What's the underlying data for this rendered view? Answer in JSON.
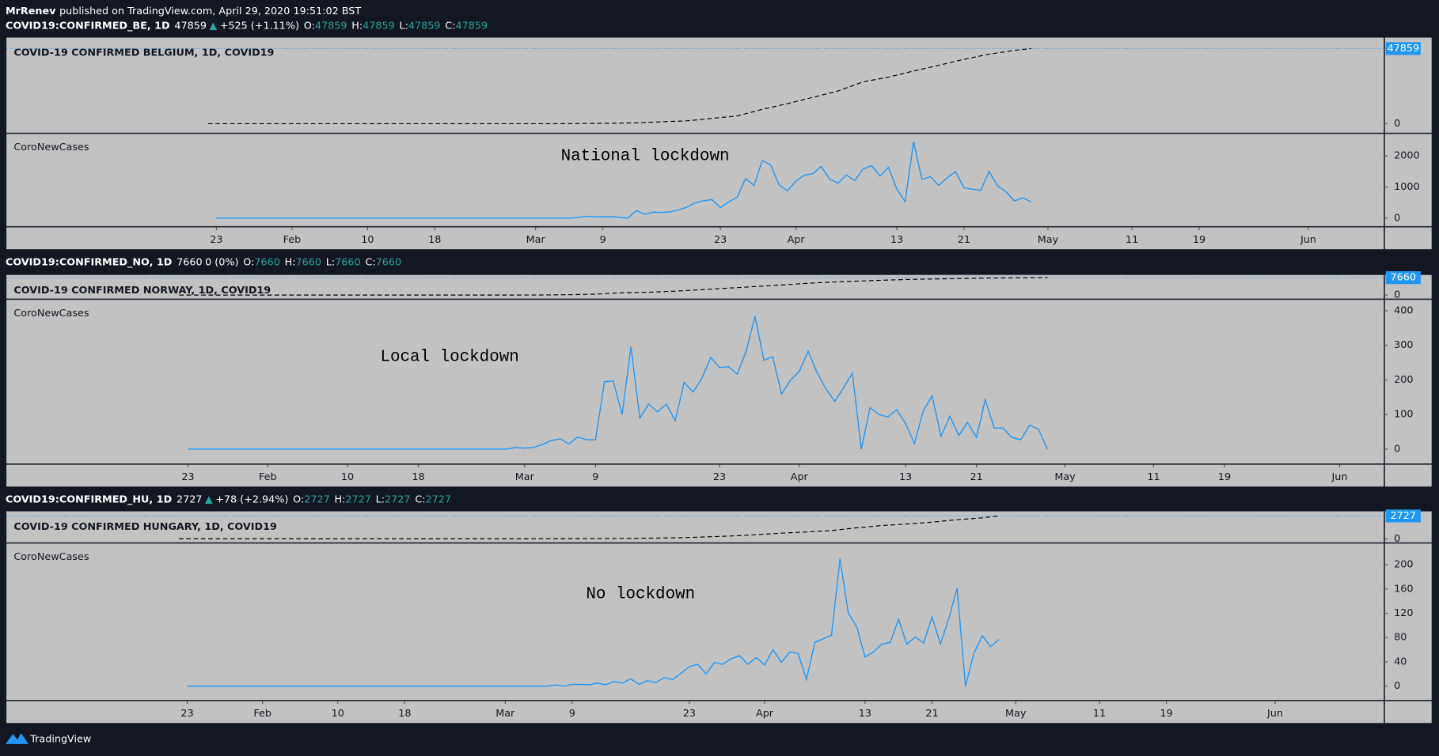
{
  "header": {
    "author": "MrRenev",
    "published": "published on TradingView.com, April 29, 2020 19:51:02 BST"
  },
  "footer": {
    "brand": "TradingView"
  },
  "chart_data": [
    {
      "type": "line",
      "symbol": "COVID19:CONFIRMED_BE, 1D",
      "last": 47859,
      "direction": "▲",
      "change": "+525 (+1.11%)",
      "ohlc": [
        {
          "label": "O:",
          "value": 47859
        },
        {
          "label": "H:",
          "value": 47859
        },
        {
          "label": "L:",
          "value": 47859
        },
        {
          "label": "C:",
          "value": 47859
        }
      ],
      "title": "COVID-19 CONFIRMED BELGIUM, 1D, COVID19",
      "cumulative_x": [
        22,
        34,
        35,
        60,
        61,
        64,
        67,
        70,
        73,
        76,
        79,
        82,
        85,
        88,
        91,
        94,
        97,
        100,
        103,
        106,
        109,
        112,
        115,
        118,
        120
      ],
      "cumulative_values": [
        0,
        0,
        1,
        1,
        2,
        13,
        169,
        267,
        559,
        1243,
        1795,
        3401,
        4937,
        9134,
        12775,
        16770,
        20814,
        26667,
        29647,
        33573,
        37183,
        40956,
        44293,
        46687,
        47859
      ],
      "cumulative_ylim": [
        -5836,
        54860
      ],
      "cumulative_yticks": [
        0,
        47859
      ],
      "indicator": "CoroNewCases",
      "annotation": "National lockdown",
      "color": "#2196f3",
      "x": [
        23,
        65,
        66,
        67,
        68,
        69,
        70,
        71,
        72,
        73,
        74,
        75,
        76,
        77,
        78,
        79,
        80,
        81,
        82,
        83,
        84,
        85,
        86,
        87,
        88,
        89,
        90,
        91,
        92,
        93,
        94,
        95,
        96,
        97,
        98,
        99,
        100,
        101,
        102,
        103,
        104,
        105,
        106,
        107,
        108,
        109,
        110,
        111,
        112,
        113,
        114,
        115,
        116,
        117,
        118,
        119,
        120
      ],
      "values": [
        0,
        0,
        20,
        60,
        40,
        40,
        45,
        30,
        0,
        240,
        120,
        190,
        180,
        200,
        260,
        350,
        490,
        560,
        590,
        340,
        520,
        670,
        1270,
        1050,
        1850,
        1700,
        1060,
        880,
        1190,
        1380,
        1420,
        1660,
        1260,
        1120,
        1380,
        1210,
        1580,
        1680,
        1350,
        1630,
        940,
        530,
        2450,
        1240,
        1330,
        1050,
        1290,
        1490,
        970,
        930,
        890,
        1500,
        1030,
        850,
        550,
        650,
        520
      ],
      "ylim": [
        -265,
        2706
      ],
      "yticks": [
        0,
        1000,
        2000
      ],
      "xlim": [
        -2,
        162
      ],
      "xticks": [
        {
          "value": 23,
          "label": "23"
        },
        {
          "value": 32,
          "label": "Feb"
        },
        {
          "value": 41,
          "label": "10"
        },
        {
          "value": 49,
          "label": "18"
        },
        {
          "value": 61,
          "label": "Mar"
        },
        {
          "value": 69,
          "label": "9"
        },
        {
          "value": 83,
          "label": "23"
        },
        {
          "value": 92,
          "label": "Apr"
        },
        {
          "value": 104,
          "label": "13"
        },
        {
          "value": 112,
          "label": "21"
        },
        {
          "value": 122,
          "label": "May"
        },
        {
          "value": 132,
          "label": "11"
        },
        {
          "value": 140,
          "label": "19"
        },
        {
          "value": 153,
          "label": "Jun"
        }
      ]
    },
    {
      "type": "line",
      "symbol": "COVID19:CONFIRMED_NO, 1D",
      "last": 7660,
      "change": "0 (0%)",
      "ohlc": [
        {
          "label": "O:",
          "value": 7660
        },
        {
          "label": "H:",
          "value": 7660
        },
        {
          "label": "L:",
          "value": 7660
        },
        {
          "label": "C:",
          "value": 7660
        }
      ],
      "title": "COVID-19 CONFIRMED NORWAY, 1D, COVID19",
      "cumulative_x": [
        22,
        56,
        57,
        60,
        63,
        66,
        69,
        72,
        75,
        78,
        81,
        84,
        87,
        90,
        93,
        96,
        99,
        102,
        105,
        108,
        111,
        114,
        117,
        120
      ],
      "cumulative_values": [
        0,
        0,
        1,
        19,
        56,
        147,
        400,
        996,
        1256,
        1741,
        2383,
        3084,
        3755,
        4447,
        5208,
        5760,
        6211,
        6623,
        6937,
        7156,
        7338,
        7499,
        7599,
        7660
      ],
      "cumulative_ylim": [
        -1613,
        8870
      ],
      "cumulative_yticks": [
        0,
        7660
      ],
      "indicator": "CoroNewCases",
      "annotation": "Local lockdown",
      "color": "#2196f3",
      "x": [
        23,
        59,
        60,
        61,
        62,
        63,
        64,
        65,
        66,
        67,
        68,
        69,
        70,
        71,
        72,
        73,
        74,
        75,
        76,
        77,
        78,
        79,
        80,
        81,
        82,
        83,
        84,
        85,
        86,
        87,
        88,
        89,
        90,
        91,
        92,
        93,
        94,
        95,
        96,
        97,
        98,
        99,
        100,
        101,
        102,
        103,
        104,
        105,
        106,
        107,
        108,
        109,
        110,
        111,
        112,
        113,
        114,
        115,
        116,
        117,
        118,
        119,
        120
      ],
      "values": [
        0,
        0,
        5,
        3,
        5,
        13,
        25,
        30,
        15,
        35,
        27,
        27,
        195,
        197,
        100,
        296,
        90,
        130,
        108,
        130,
        82,
        193,
        165,
        204,
        265,
        236,
        238,
        217,
        283,
        384,
        257,
        267,
        159,
        199,
        225,
        283,
        222,
        175,
        138,
        177,
        220,
        0,
        120,
        100,
        93,
        114,
        74,
        16,
        111,
        154,
        37,
        95,
        40,
        77,
        34,
        143,
        61,
        61,
        34,
        27,
        69,
        58,
        0
      ],
      "ylim": [
        -42,
        432
      ],
      "yticks": [
        0,
        100,
        200,
        300,
        400
      ],
      "xlim": [
        2.5,
        158
      ],
      "xticks": [
        {
          "value": 23,
          "label": "23"
        },
        {
          "value": 32,
          "label": "Feb"
        },
        {
          "value": 41,
          "label": "10"
        },
        {
          "value": 49,
          "label": "18"
        },
        {
          "value": 61,
          "label": "Mar"
        },
        {
          "value": 69,
          "label": "9"
        },
        {
          "value": 83,
          "label": "23"
        },
        {
          "value": 92,
          "label": "Apr"
        },
        {
          "value": 104,
          "label": "13"
        },
        {
          "value": 112,
          "label": "21"
        },
        {
          "value": 122,
          "label": "May"
        },
        {
          "value": 132,
          "label": "11"
        },
        {
          "value": 140,
          "label": "19"
        },
        {
          "value": 153,
          "label": "Jun"
        }
      ]
    },
    {
      "type": "line",
      "symbol": "COVID19:CONFIRMED_HU, 1D",
      "last": 2727,
      "direction": "▲",
      "change": "+78 (+2.94%)",
      "ohlc": [
        {
          "label": "O:",
          "value": 2727
        },
        {
          "label": "H:",
          "value": 2727
        },
        {
          "label": "L:",
          "value": 2727
        },
        {
          "label": "C:",
          "value": 2727
        }
      ],
      "title": "COVID-19 CONFIRMED HUNGARY, 1D, COVID19",
      "cumulative_x": [
        22,
        63,
        64,
        67,
        70,
        73,
        76,
        79,
        82,
        85,
        88,
        91,
        94,
        97,
        100,
        103,
        106,
        109,
        112,
        115,
        118,
        120
      ],
      "cumulative_values": [
        0,
        0,
        2,
        9,
        13,
        30,
        50,
        85,
        131,
        226,
        343,
        492,
        678,
        817,
        980,
        1310,
        1579,
        1763,
        1984,
        2284,
        2500,
        2727
      ],
      "cumulative_ylim": [
        -436,
        3272
      ],
      "cumulative_yticks": [
        0,
        2727
      ],
      "indicator": "CoroNewCases",
      "annotation": "No lockdown",
      "color": "#2196f3",
      "x": [
        23,
        66,
        67,
        68,
        69,
        70,
        71,
        72,
        73,
        74,
        75,
        76,
        77,
        78,
        79,
        80,
        81,
        82,
        83,
        84,
        85,
        86,
        87,
        88,
        89,
        90,
        91,
        92,
        93,
        94,
        95,
        96,
        97,
        98,
        99,
        100,
        101,
        102,
        103,
        104,
        105,
        106,
        107,
        108,
        109,
        110,
        111,
        112,
        113,
        114,
        115,
        116,
        117,
        118,
        119,
        120
      ],
      "values": [
        0,
        0,
        2,
        0,
        3,
        3,
        2,
        5,
        2,
        8,
        5,
        12,
        3,
        9,
        6,
        14,
        11,
        21,
        32,
        36,
        20,
        39,
        36,
        45,
        50,
        36,
        47,
        35,
        60,
        39,
        56,
        54,
        11,
        72,
        78,
        84,
        210,
        120,
        98,
        48,
        56,
        69,
        72,
        110,
        69,
        81,
        71,
        114,
        69,
        111,
        161,
        0,
        54,
        83,
        65,
        77
      ],
      "ylim": [
        -23,
        235
      ],
      "yticks": [
        0,
        40,
        80,
        120,
        160,
        200
      ],
      "xlim": [
        1.4,
        166
      ],
      "xticks": [
        {
          "value": 23,
          "label": "23"
        },
        {
          "value": 32,
          "label": "Feb"
        },
        {
          "value": 41,
          "label": "10"
        },
        {
          "value": 49,
          "label": "18"
        },
        {
          "value": 61,
          "label": "Mar"
        },
        {
          "value": 69,
          "label": "9"
        },
        {
          "value": 83,
          "label": "23"
        },
        {
          "value": 92,
          "label": "Apr"
        },
        {
          "value": 104,
          "label": "13"
        },
        {
          "value": 112,
          "label": "21"
        },
        {
          "value": 122,
          "label": "May"
        },
        {
          "value": 132,
          "label": "11"
        },
        {
          "value": 140,
          "label": "19"
        },
        {
          "value": 153,
          "label": "Jun"
        }
      ]
    }
  ]
}
